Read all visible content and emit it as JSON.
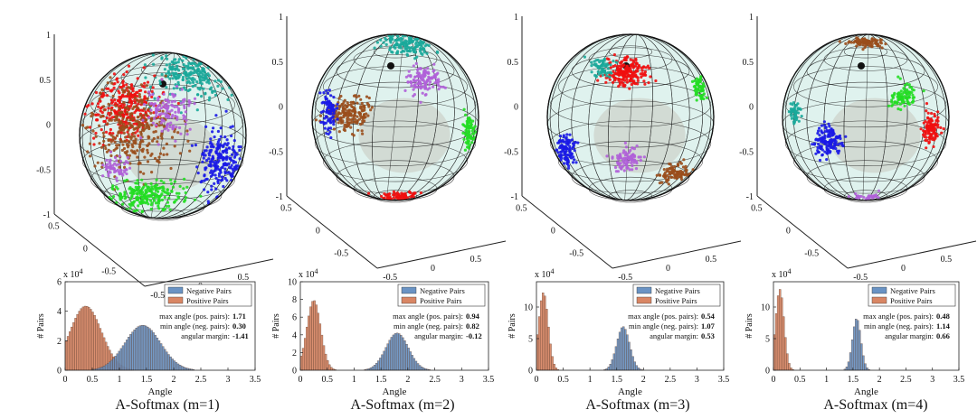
{
  "figure": {
    "captions": [
      "A-Softmax (m=1)",
      "A-Softmax (m=2)",
      "A-Softmax (m=3)",
      "A-Softmax (m=4)"
    ],
    "sphere_axis_ticks_z": [
      "1",
      "0.5",
      "0",
      "-0.5",
      "-1"
    ],
    "sphere_axis_ticks_y": [
      "0.5",
      "0",
      "-0.5"
    ],
    "sphere_axis_ticks_x": [
      "-0.5",
      "0",
      "0.5"
    ],
    "cluster_colors": {
      "red": "#f01010",
      "blue": "#1a1ae6",
      "green": "#22dd22",
      "teal": "#1aa89a",
      "purple": "#b060d8",
      "brown": "#9a4e1c"
    },
    "sphere_colors": {
      "fill": "#dff2ee",
      "grid": "#1a1a1a"
    }
  },
  "chart_data": [
    {
      "type": "bar",
      "caption": "A-Softmax (m=1)",
      "xlabel": "Angle",
      "ylabel": "# Pairs",
      "y_exponent": "x 10^4",
      "xlim": [
        0,
        3.5
      ],
      "ylim": [
        0,
        6
      ],
      "xticks": [
        "0",
        "0.5",
        "1",
        "1.5",
        "2",
        "2.5",
        "3",
        "3.5"
      ],
      "yticks": [
        "0",
        "2",
        "4",
        "6"
      ],
      "legend": [
        "Negative Pairs",
        "Positive Pairs"
      ],
      "series": [
        {
          "name": "Negative Pairs",
          "color": "#6a93c4",
          "dist": {
            "mean": 1.43,
            "sd": 0.33,
            "peak": 3.05,
            "min": 0.3,
            "max": 2.75
          }
        },
        {
          "name": "Positive Pairs",
          "color": "#d98664",
          "dist": {
            "mean": 0.38,
            "sd": 0.29,
            "peak": 4.35,
            "min": 0.0,
            "max": 1.71
          }
        }
      ],
      "stats": [
        {
          "label": "max angle (pos. pairs):",
          "value": "1.71"
        },
        {
          "label": "min angle (neg. pairs):",
          "value": "0.30"
        },
        {
          "label": "angular margin:",
          "value": "-1.41"
        }
      ]
    },
    {
      "type": "bar",
      "caption": "A-Softmax (m=2)",
      "xlabel": "Angle",
      "ylabel": "# Pairs",
      "y_exponent": "x 10^4",
      "xlim": [
        0,
        3.5
      ],
      "ylim": [
        0,
        10
      ],
      "xticks": [
        "0",
        "0.5",
        "1",
        "1.5",
        "2",
        "2.5",
        "3",
        "3.5"
      ],
      "yticks": [
        "0",
        "2",
        "4",
        "6",
        "8",
        "10"
      ],
      "legend": [
        "Negative Pairs",
        "Positive Pairs"
      ],
      "series": [
        {
          "name": "Negative Pairs",
          "color": "#6a93c4",
          "dist": {
            "mean": 1.8,
            "sd": 0.21,
            "peak": 4.2,
            "min": 0.82,
            "max": 2.65
          }
        },
        {
          "name": "Positive Pairs",
          "color": "#d98664",
          "dist": {
            "mean": 0.25,
            "sd": 0.13,
            "peak": 7.9,
            "min": 0.0,
            "max": 0.94
          }
        }
      ],
      "stats": [
        {
          "label": "max angle (pos. pairs):",
          "value": "0.94"
        },
        {
          "label": "min angle (neg. pairs):",
          "value": "0.82"
        },
        {
          "label": "angular margin:",
          "value": "-0.12"
        }
      ]
    },
    {
      "type": "bar",
      "caption": "A-Softmax (m=3)",
      "xlabel": "Angle",
      "ylabel": "# Pairs",
      "y_exponent": "x 10^4",
      "xlim": [
        0,
        3.5
      ],
      "ylim": [
        0,
        14
      ],
      "xticks": [
        "0",
        "0.5",
        "1",
        "1.5",
        "2",
        "2.5",
        "3",
        "3.5"
      ],
      "yticks": [
        "0",
        "5",
        "10"
      ],
      "legend": [
        "Negative Pairs",
        "Positive Pairs"
      ],
      "series": [
        {
          "name": "Negative Pairs",
          "color": "#6a93c4",
          "dist": {
            "mean": 1.62,
            "sd": 0.12,
            "peak": 6.9,
            "min": 1.07,
            "max": 2.1
          }
        },
        {
          "name": "Positive Pairs",
          "color": "#d98664",
          "dist": {
            "mean": 0.13,
            "sd": 0.09,
            "peak": 12.3,
            "min": 0.0,
            "max": 0.54
          }
        }
      ],
      "stats": [
        {
          "label": "max angle (pos. pairs):",
          "value": "0.54"
        },
        {
          "label": "min angle (neg. pairs):",
          "value": "1.07"
        },
        {
          "label": "angular margin:",
          "value": "0.53"
        }
      ]
    },
    {
      "type": "bar",
      "caption": "A-Softmax (m=4)",
      "xlabel": "Angle",
      "ylabel": "# Pairs",
      "y_exponent": "x 10^4",
      "xlim": [
        0,
        3.5
      ],
      "ylim": [
        0,
        14
      ],
      "xticks": [
        "0",
        "0.5",
        "1",
        "1.5",
        "2",
        "2.5",
        "3",
        "3.5"
      ],
      "yticks": [
        "0",
        "5",
        "10"
      ],
      "legend": [
        "Negative Pairs",
        "Positive Pairs"
      ],
      "series": [
        {
          "name": "Negative Pairs",
          "color": "#6a93c4",
          "dist": {
            "mean": 1.57,
            "sd": 0.08,
            "peak": 8.2,
            "min": 1.14,
            "max": 1.95
          }
        },
        {
          "name": "Positive Pairs",
          "color": "#d98664",
          "dist": {
            "mean": 0.12,
            "sd": 0.08,
            "peak": 12.8,
            "min": 0.0,
            "max": 0.48
          }
        }
      ],
      "stats": [
        {
          "label": "max angle (pos. pairs):",
          "value": "0.48"
        },
        {
          "label": "min angle (neg. pairs):",
          "value": "1.14"
        },
        {
          "label": "angular margin:",
          "value": "0.66"
        }
      ]
    }
  ]
}
